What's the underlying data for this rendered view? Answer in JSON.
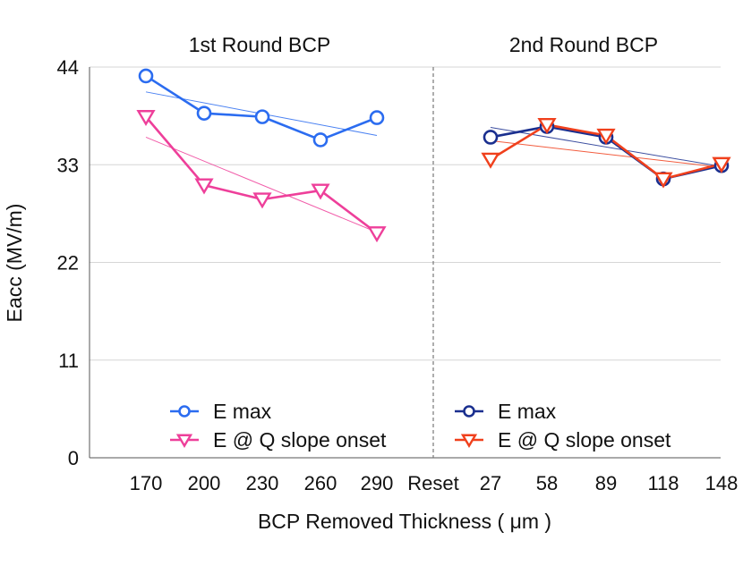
{
  "chart_data": {
    "type": "line",
    "ylabel": "Eacc (MV/m)",
    "xlabel": "BCP Removed Thickness ( μm )",
    "ylim": [
      0,
      44
    ],
    "yticks": [
      0,
      11,
      22,
      33,
      44
    ],
    "grid": true,
    "separator_label": "Reset",
    "panels": [
      {
        "title": "1st Round BCP",
        "categories": [
          "170",
          "200",
          "230",
          "260",
          "290"
        ],
        "legend_position": "bottom-center",
        "series": [
          {
            "name": "E max",
            "marker": "circle",
            "color": "#2b6cf0",
            "values": [
              43.0,
              38.8,
              38.4,
              35.8,
              38.3
            ],
            "trend": [
              41.2,
              36.3
            ]
          },
          {
            "name": "E @ Q slope onset",
            "marker": "triangle-down",
            "color": "#ee3f9a",
            "values": [
              38.4,
              30.7,
              29.1,
              30.1,
              25.3
            ],
            "trend": [
              36.1,
              25.4
            ]
          }
        ]
      },
      {
        "title": "2nd Round BCP",
        "categories": [
          "27",
          "58",
          "89",
          "118",
          "148"
        ],
        "legend_position": "bottom-center",
        "series": [
          {
            "name": "E max",
            "marker": "circle",
            "color": "#1a2f8f",
            "values": [
              36.1,
              37.3,
              36.1,
              31.4,
              32.9
            ],
            "trend": [
              37.2,
              32.8
            ]
          },
          {
            "name": "E @ Q slope onset",
            "marker": "triangle-down",
            "color": "#f0401c",
            "values": [
              33.6,
              37.5,
              36.3,
              31.4,
              33.1
            ],
            "trend": [
              35.7,
              32.7
            ]
          }
        ]
      }
    ]
  }
}
